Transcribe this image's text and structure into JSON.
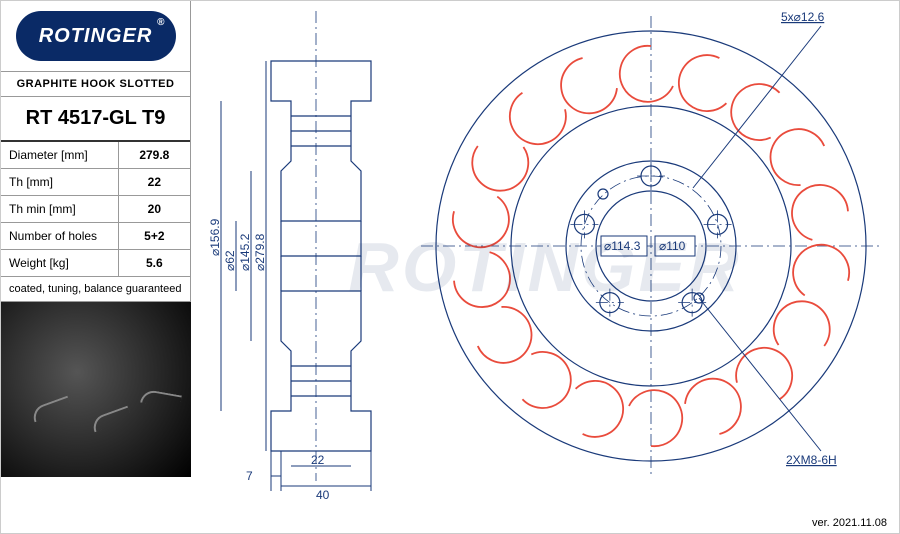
{
  "brand": "ROTINGER",
  "subtitle": "GRAPHITE HOOK SLOTTED",
  "part_number": "RT 4517-GL T9",
  "specs": [
    {
      "label": "Diameter [mm]",
      "value": "279.8"
    },
    {
      "label": "Th [mm]",
      "value": "22"
    },
    {
      "label": "Th min [mm]",
      "value": "20"
    },
    {
      "label": "Number of holes",
      "value": "5+2"
    },
    {
      "label": "Weight [kg]",
      "value": "5.6"
    }
  ],
  "note": "coated, tuning, balance guaranteed",
  "version": "ver. 2021.11.08",
  "side_view": {
    "dims_vertical": [
      "⌀156.9",
      "⌀62",
      "⌀145.2",
      "⌀279.8"
    ],
    "dims_horizontal": [
      "7",
      "22",
      "40"
    ]
  },
  "front_view": {
    "outer_diameter": 279.8,
    "slot_count": 18,
    "slot_color": "#e94b3c",
    "bolt_circle_label": "⌀114.3",
    "bolt_hole_label": "⌀110",
    "callout_top": "5x⌀12.6",
    "callout_bottom": "2XM8-6H",
    "bolt_count": 5
  },
  "colors": {
    "line": "#1a3a7a",
    "logo_bg": "#0a2a66",
    "slot": "#e94b3c"
  }
}
